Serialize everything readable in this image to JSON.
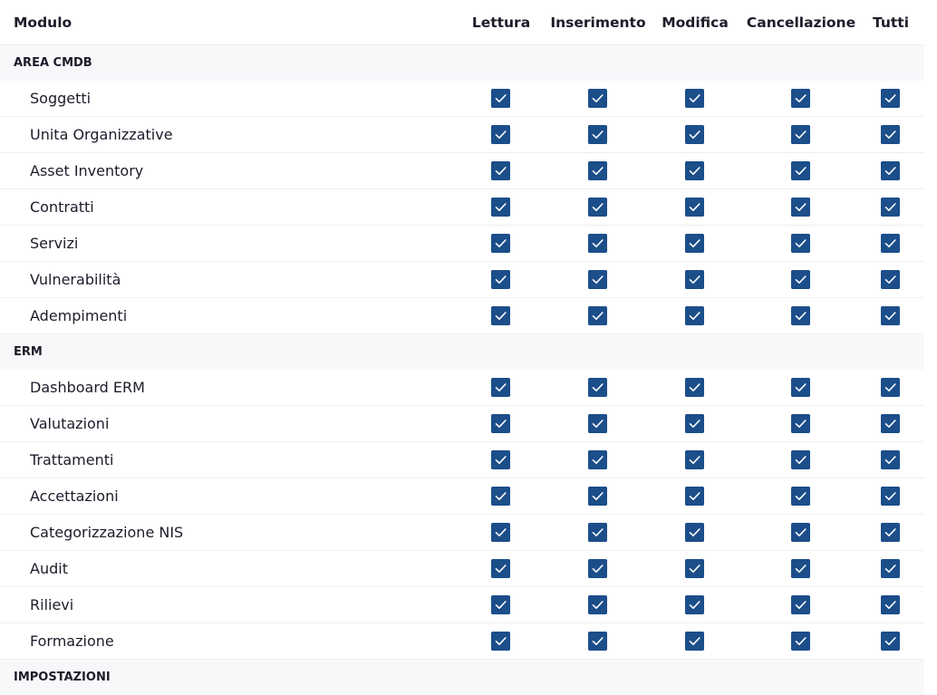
{
  "header": {
    "columns": [
      "Modulo",
      "Lettura",
      "Inserimento",
      "Modifica",
      "Cancellazione",
      "Tutti"
    ]
  },
  "groups": [
    {
      "title": "AREA CMDB",
      "rows": [
        {
          "label": "Soggetti",
          "permissions": [
            true,
            true,
            true,
            true,
            true
          ]
        },
        {
          "label": "Unita Organizzative",
          "permissions": [
            true,
            true,
            true,
            true,
            true
          ]
        },
        {
          "label": "Asset Inventory",
          "permissions": [
            true,
            true,
            true,
            true,
            true
          ]
        },
        {
          "label": "Contratti",
          "permissions": [
            true,
            true,
            true,
            true,
            true
          ]
        },
        {
          "label": "Servizi",
          "permissions": [
            true,
            true,
            true,
            true,
            true
          ]
        },
        {
          "label": "Vulnerabilità",
          "permissions": [
            true,
            true,
            true,
            true,
            true
          ]
        },
        {
          "label": "Adempimenti",
          "permissions": [
            true,
            true,
            true,
            true,
            true
          ]
        }
      ]
    },
    {
      "title": "ERM",
      "rows": [
        {
          "label": "Dashboard ERM",
          "permissions": [
            true,
            true,
            true,
            true,
            true
          ]
        },
        {
          "label": "Valutazioni",
          "permissions": [
            true,
            true,
            true,
            true,
            true
          ]
        },
        {
          "label": "Trattamenti",
          "permissions": [
            true,
            true,
            true,
            true,
            true
          ]
        },
        {
          "label": "Accettazioni",
          "permissions": [
            true,
            true,
            true,
            true,
            true
          ]
        },
        {
          "label": "Categorizzazione NIS",
          "permissions": [
            true,
            true,
            true,
            true,
            true
          ]
        },
        {
          "label": "Audit",
          "permissions": [
            true,
            true,
            true,
            true,
            true
          ]
        },
        {
          "label": "Rilievi",
          "permissions": [
            true,
            true,
            true,
            true,
            true
          ]
        },
        {
          "label": "Formazione",
          "permissions": [
            true,
            true,
            true,
            true,
            true
          ]
        }
      ]
    },
    {
      "title": "IMPOSTAZIONI"
    }
  ]
}
